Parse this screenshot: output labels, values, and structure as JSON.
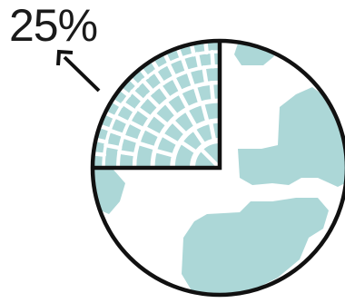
{
  "label": {
    "text": "25%"
  },
  "highlighted_fraction": 0.25,
  "colors": {
    "land": "#acd7d7",
    "ocean": "#ffffff",
    "outline": "#111111",
    "label": "#1a1a1a"
  }
}
